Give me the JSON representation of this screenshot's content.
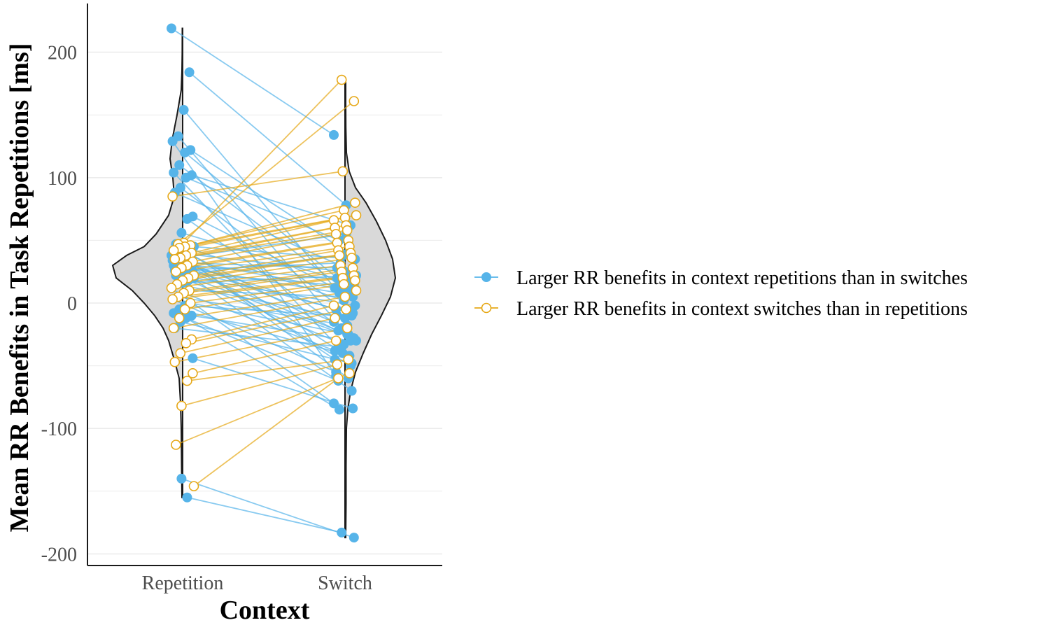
{
  "chart_data": {
    "type": "scatter",
    "subtype": "paired violin / raincloud with connecting lines",
    "title": "",
    "xlabel": "Context",
    "ylabel": "Mean RR Benefits in Task Repetitions [ms]",
    "categories": [
      "Repetition",
      "Switch"
    ],
    "ylim": [
      -205,
      240
    ],
    "yticks": [
      -200,
      -100,
      0,
      100,
      200
    ],
    "grid": "horizontal major and minor gridlines",
    "legend_position": "right",
    "colors": {
      "rep_larger": "#56b4e9",
      "switch_larger": "#e6a817",
      "violin_fill": "#d9d9d9",
      "violin_stroke": "#1a1a1a",
      "grid": "#ebebeb",
      "axis": "#1a1a1a"
    },
    "series": [
      {
        "name": "Larger RR benefits in context repetitions than in switches",
        "marker": "filled circle",
        "pairs": [
          [
            219,
            134
          ],
          [
            184,
            78
          ],
          [
            154,
            12
          ],
          [
            133,
            -25
          ],
          [
            129,
            -58
          ],
          [
            122,
            40
          ],
          [
            120,
            20
          ],
          [
            110,
            8
          ],
          [
            104,
            -35
          ],
          [
            102,
            62
          ],
          [
            100,
            50
          ],
          [
            92,
            -10
          ],
          [
            88,
            30
          ],
          [
            69,
            5
          ],
          [
            67,
            -20
          ],
          [
            56,
            15
          ],
          [
            47,
            -40
          ],
          [
            45,
            35
          ],
          [
            44,
            2
          ],
          [
            42,
            -30
          ],
          [
            40,
            25
          ],
          [
            38,
            -15
          ],
          [
            37,
            55
          ],
          [
            36,
            -45
          ],
          [
            35,
            10
          ],
          [
            34,
            -5
          ],
          [
            33,
            -60
          ],
          [
            32,
            28
          ],
          [
            31,
            18
          ],
          [
            30,
            -22
          ],
          [
            29,
            -50
          ],
          [
            28,
            8
          ],
          [
            27,
            -70
          ],
          [
            26,
            32
          ],
          [
            25,
            -8
          ],
          [
            24,
            14
          ],
          [
            23,
            -28
          ],
          [
            22,
            38
          ],
          [
            20,
            -2
          ],
          [
            18,
            -33
          ],
          [
            16,
            22
          ],
          [
            15,
            -12
          ],
          [
            12,
            -80
          ],
          [
            10,
            5
          ],
          [
            8,
            -38
          ],
          [
            5,
            -18
          ],
          [
            3,
            -55
          ],
          [
            0,
            -25
          ],
          [
            -2,
            -10
          ],
          [
            -5,
            -42
          ],
          [
            -8,
            -62
          ],
          [
            -10,
            -30
          ],
          [
            -12,
            -85
          ],
          [
            -15,
            -48
          ],
          [
            -20,
            -35
          ],
          [
            -44,
            -84
          ],
          [
            -155,
            -183
          ],
          [
            -140,
            -187
          ]
        ]
      },
      {
        "name": "Larger RR benefits in context switches than in repetitions",
        "marker": "open circle",
        "pairs": [
          [
            48,
            178
          ],
          [
            47,
            161
          ],
          [
            85,
            105
          ],
          [
            46,
            80
          ],
          [
            45,
            74
          ],
          [
            44,
            70
          ],
          [
            42,
            68
          ],
          [
            40,
            66
          ],
          [
            38,
            62
          ],
          [
            36,
            60
          ],
          [
            35,
            58
          ],
          [
            33,
            55
          ],
          [
            30,
            50
          ],
          [
            28,
            48
          ],
          [
            25,
            45
          ],
          [
            22,
            42
          ],
          [
            20,
            40
          ],
          [
            18,
            38
          ],
          [
            15,
            36
          ],
          [
            12,
            30
          ],
          [
            10,
            28
          ],
          [
            8,
            25
          ],
          [
            5,
            22
          ],
          [
            3,
            20
          ],
          [
            0,
            18
          ],
          [
            -5,
            15
          ],
          [
            -12,
            10
          ],
          [
            -20,
            5
          ],
          [
            -29,
            -2
          ],
          [
            -32,
            -5
          ],
          [
            -40,
            -12
          ],
          [
            -47,
            -20
          ],
          [
            -56,
            -30
          ],
          [
            -62,
            -45
          ],
          [
            -82,
            -49
          ],
          [
            -113,
            -56
          ],
          [
            -146,
            -60
          ]
        ]
      }
    ]
  }
}
